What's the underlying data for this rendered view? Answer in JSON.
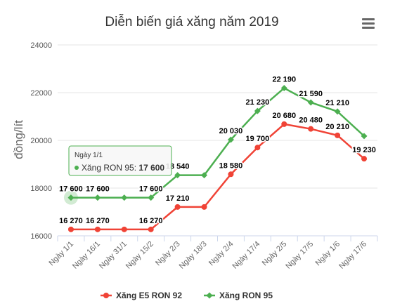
{
  "chart_data": {
    "type": "line",
    "title": "Diễn biến giá xăng năm 2019",
    "ylabel": "đồng/lít",
    "ylim": [
      16000,
      24000
    ],
    "yticks": [
      "16000",
      "18000",
      "20000",
      "22000",
      "24000"
    ],
    "categories": [
      "Ngày 1/1",
      "Ngày 16/1",
      "Ngày 31/1",
      "Ngày 15/2",
      "Ngày 2/3",
      "Ngày 18/3",
      "Ngày 2/4",
      "Ngày 17/4",
      "Ngày 2/5",
      "Ngày 17/5",
      "Ngày 1/6",
      "Ngày 17/6"
    ],
    "series": [
      {
        "name": "Xăng E5 RON 92",
        "color": "#f04336",
        "values": [
          16270,
          16270,
          16270,
          16270,
          17210,
          17210,
          18580,
          19700,
          20680,
          20480,
          20210,
          19230
        ],
        "labels": [
          "16 270",
          "16 270",
          "",
          "16 270",
          "17 210",
          "",
          "18 580",
          "19 700",
          "20 680",
          "20 480",
          "20 210",
          "19 230"
        ]
      },
      {
        "name": "Xăng RON 95",
        "color": "#4caf50",
        "values": [
          17600,
          17600,
          17600,
          17600,
          18540,
          18540,
          20030,
          21230,
          22190,
          21590,
          21210,
          20180
        ],
        "labels": [
          "17 600",
          "17 600",
          "",
          "17 600",
          "18 540",
          "",
          "20 030",
          "21 230",
          "22 190",
          "21 590",
          "21 210",
          ""
        ]
      }
    ],
    "grid": true,
    "legend": "bottom"
  },
  "tooltip": {
    "header": "Ngày 1/1",
    "series_name": "Xăng RON 95",
    "value": "17 600"
  },
  "menu_icon": "hamburger-menu-icon"
}
